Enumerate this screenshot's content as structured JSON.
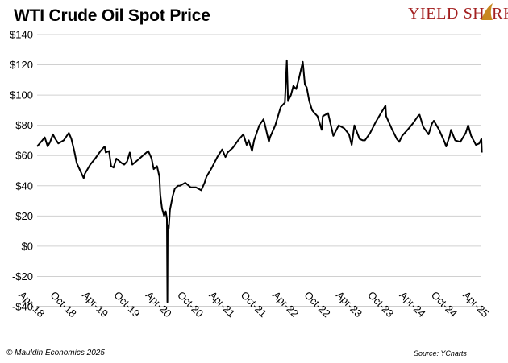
{
  "title": "WTI Crude Oil Spot Price",
  "logo": {
    "text_left": "YIELD SH",
    "text_right": "RK",
    "fin_color": "#c8871e",
    "text_color": "#a31f1f"
  },
  "footer": {
    "copyright": "© Mauldin Economics 2025",
    "source": "Source: YCharts"
  },
  "chart_data": {
    "type": "line",
    "title": "WTI Crude Oil Spot Price",
    "xlabel": "",
    "ylabel": "",
    "ylim": [
      -40,
      140
    ],
    "y_ticks": [
      -40,
      -20,
      0,
      20,
      40,
      60,
      80,
      100,
      120,
      140
    ],
    "y_tick_labels": [
      "-$40",
      "-$20",
      "$0",
      "$20",
      "$40",
      "$60",
      "$80",
      "$100",
      "$120",
      "$140"
    ],
    "x_range": [
      "2018-04",
      "2025-04"
    ],
    "x_tick_labels": [
      "Apr-18",
      "Oct-18",
      "Apr-19",
      "Oct-19",
      "Apr-20",
      "Oct-20",
      "Apr-21",
      "Oct-21",
      "Apr-22",
      "Oct-22",
      "Apr-23",
      "Oct-23",
      "Apr-24",
      "Oct-24",
      "Apr-25"
    ],
    "grid": true,
    "line_color": "#000000",
    "series": [
      {
        "values": [
          [
            "2018-04",
            66
          ],
          [
            "2018-05",
            70
          ],
          [
            "2018-05-15",
            72
          ],
          [
            "2018-06",
            66
          ],
          [
            "2018-06-15",
            69
          ],
          [
            "2018-07",
            74
          ],
          [
            "2018-07-15",
            71
          ],
          [
            "2018-08",
            68
          ],
          [
            "2018-09",
            70
          ],
          [
            "2018-10",
            75
          ],
          [
            "2018-10-15",
            71
          ],
          [
            "2018-11",
            63
          ],
          [
            "2018-11-15",
            55
          ],
          [
            "2018-12",
            51
          ],
          [
            "2018-12-25",
            45
          ],
          [
            "2019-01",
            48
          ],
          [
            "2019-02",
            54
          ],
          [
            "2019-03",
            58
          ],
          [
            "2019-04",
            63
          ],
          [
            "2019-04-25",
            66
          ],
          [
            "2019-05",
            62
          ],
          [
            "2019-05-20",
            63
          ],
          [
            "2019-06",
            53
          ],
          [
            "2019-06-15",
            52
          ],
          [
            "2019-07",
            58
          ],
          [
            "2019-08",
            55
          ],
          [
            "2019-08-15",
            54
          ],
          [
            "2019-09",
            56
          ],
          [
            "2019-09-16",
            62
          ],
          [
            "2019-10",
            54
          ],
          [
            "2019-11",
            57
          ],
          [
            "2019-12",
            60
          ],
          [
            "2020-01",
            63
          ],
          [
            "2020-01-20",
            58
          ],
          [
            "2020-02",
            51
          ],
          [
            "2020-02-20",
            53
          ],
          [
            "2020-03-05",
            46
          ],
          [
            "2020-03-10",
            34
          ],
          [
            "2020-03-20",
            25
          ],
          [
            "2020-04-01",
            20
          ],
          [
            "2020-04-10",
            23
          ],
          [
            "2020-04-17",
            18
          ],
          [
            "2020-04-20",
            -37
          ],
          [
            "2020-04-22",
            14
          ],
          [
            "2020-04-28",
            12
          ],
          [
            "2020-05-05",
            24
          ],
          [
            "2020-05-20",
            33
          ],
          [
            "2020-06",
            38
          ],
          [
            "2020-06-20",
            40
          ],
          [
            "2020-07",
            40
          ],
          [
            "2020-08",
            42
          ],
          [
            "2020-09",
            39
          ],
          [
            "2020-10",
            39
          ],
          [
            "2020-11",
            37
          ],
          [
            "2020-11-20",
            42
          ],
          [
            "2020-12",
            46
          ],
          [
            "2021-01",
            52
          ],
          [
            "2021-02",
            59
          ],
          [
            "2021-03",
            64
          ],
          [
            "2021-03-20",
            59
          ],
          [
            "2021-04",
            62
          ],
          [
            "2021-05",
            65
          ],
          [
            "2021-06",
            70
          ],
          [
            "2021-07",
            74
          ],
          [
            "2021-07-20",
            67
          ],
          [
            "2021-08",
            70
          ],
          [
            "2021-08-20",
            63
          ],
          [
            "2021-09",
            70
          ],
          [
            "2021-10",
            80
          ],
          [
            "2021-10-25",
            84
          ],
          [
            "2021-11",
            81
          ],
          [
            "2021-11-25",
            69
          ],
          [
            "2021-12",
            72
          ],
          [
            "2022-01",
            80
          ],
          [
            "2022-02",
            92
          ],
          [
            "2022-02-25",
            95
          ],
          [
            "2022-03-08",
            123
          ],
          [
            "2022-03-15",
            96
          ],
          [
            "2022-04",
            100
          ],
          [
            "2022-04-15",
            106
          ],
          [
            "2022-05",
            104
          ],
          [
            "2022-05-15",
            110
          ],
          [
            "2022-06-08",
            122
          ],
          [
            "2022-06-20",
            107
          ],
          [
            "2022-07",
            105
          ],
          [
            "2022-07-15",
            96
          ],
          [
            "2022-08",
            90
          ],
          [
            "2022-08-15",
            88
          ],
          [
            "2022-09",
            86
          ],
          [
            "2022-09-25",
            77
          ],
          [
            "2022-10",
            86
          ],
          [
            "2022-11",
            88
          ],
          [
            "2022-11-25",
            76
          ],
          [
            "2022-12",
            73
          ],
          [
            "2023-01",
            80
          ],
          [
            "2023-02",
            78
          ],
          [
            "2023-03",
            74
          ],
          [
            "2023-03-17",
            67
          ],
          [
            "2023-04",
            80
          ],
          [
            "2023-05",
            71
          ],
          [
            "2023-05-20",
            70
          ],
          [
            "2023-06",
            70
          ],
          [
            "2023-07",
            75
          ],
          [
            "2023-08",
            82
          ],
          [
            "2023-09",
            88
          ],
          [
            "2023-09-27",
            93
          ],
          [
            "2023-10",
            86
          ],
          [
            "2023-11",
            78
          ],
          [
            "2023-12",
            71
          ],
          [
            "2023-12-15",
            69
          ],
          [
            "2024-01",
            73
          ],
          [
            "2024-02",
            77
          ],
          [
            "2024-03",
            81
          ],
          [
            "2024-04",
            86
          ],
          [
            "2024-04-10",
            87
          ],
          [
            "2024-05",
            79
          ],
          [
            "2024-06",
            74
          ],
          [
            "2024-06-20",
            81
          ],
          [
            "2024-07",
            83
          ],
          [
            "2024-08",
            77
          ],
          [
            "2024-09",
            69
          ],
          [
            "2024-09-10",
            66
          ],
          [
            "2024-10",
            73
          ],
          [
            "2024-10-08",
            77
          ],
          [
            "2024-11",
            70
          ],
          [
            "2024-12",
            69
          ],
          [
            "2025-01",
            75
          ],
          [
            "2025-01-15",
            80
          ],
          [
            "2025-02",
            73
          ],
          [
            "2025-03",
            67
          ],
          [
            "2025-03-20",
            68
          ],
          [
            "2025-04-01",
            71
          ],
          [
            "2025-04-04",
            62
          ]
        ]
      }
    ]
  }
}
